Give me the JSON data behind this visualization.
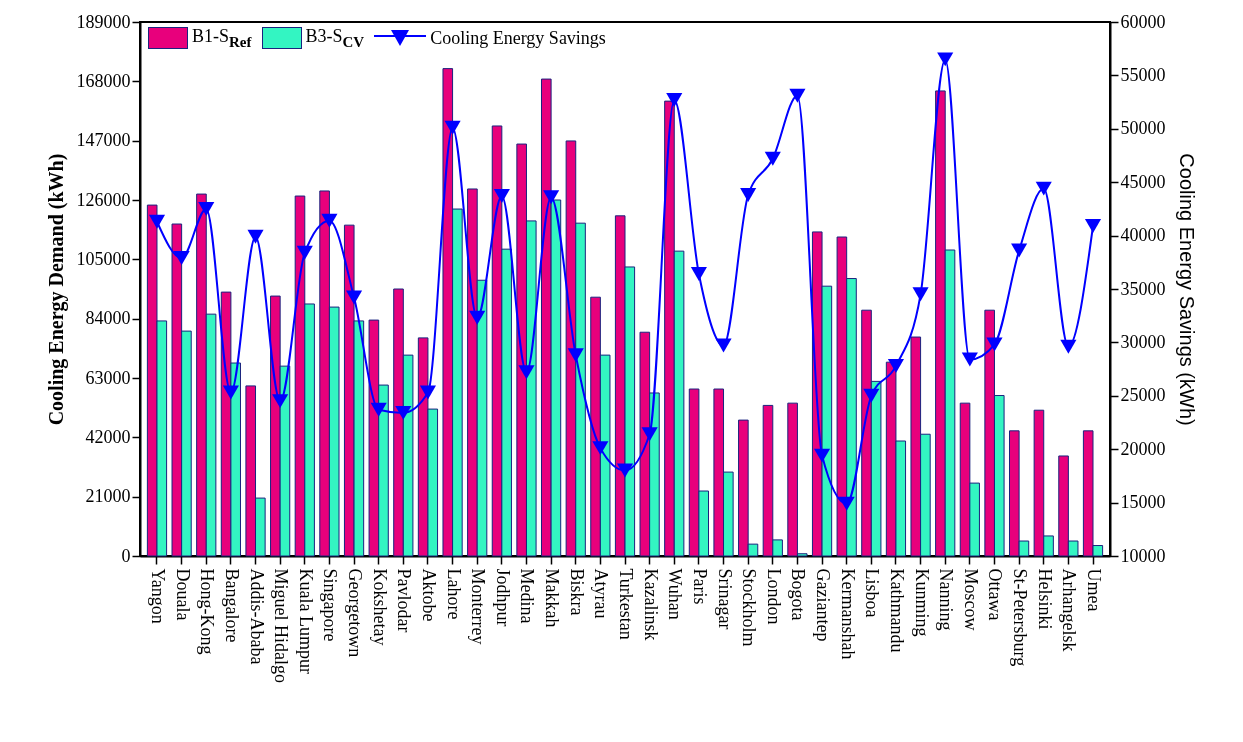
{
  "chart_data": {
    "type": "bar",
    "ylabel": "Cooling Energy Demand (kWh)",
    "y2label": "Cooling Energy Savings (kWh)",
    "categories": [
      "Yangon",
      "Douala",
      "Hong-Kong",
      "Bangalore",
      "Addis-Ababa",
      "Miguel Hidalgo",
      "Kuala Lumpur",
      "Singapore",
      "Georgetown",
      "Kokshetay",
      "Pavlodar",
      "Aktobe",
      "Lahore",
      "Monterrey",
      "Jodhpur",
      "Medina",
      "Makkah",
      "Biskra",
      "Atyrau",
      "Turkestan",
      "Kazalinsk",
      "Wuhan",
      "Paris",
      "Srinagar",
      "Stockholm",
      "London",
      "Bogota",
      "Gaziantep",
      "Kermanshah",
      "Lisboa",
      "Kathmandu",
      "Kunming",
      "Nanning",
      "Moscow",
      "Ottawa",
      "St-Petersburg",
      "Helsinki",
      "Arhangelsk",
      "Umea"
    ],
    "series": [
      {
        "name": "B1-S$_{Ref}$",
        "color": "#e8007c",
        "values": [
          124200,
          117500,
          128100,
          93400,
          60200,
          92000,
          127400,
          129200,
          117100,
          83500,
          94500,
          77200,
          172500,
          129900,
          152200,
          145800,
          168800,
          146900,
          91600,
          120400,
          79200,
          161000,
          59100,
          59100,
          48100,
          53300,
          54100,
          114700,
          112900,
          87000,
          68600,
          77500,
          164600,
          54100,
          87000,
          44300,
          51600,
          35400,
          44300
        ]
      },
      {
        "name": "B3-S$_{CV}$",
        "color": "#33f5c2",
        "values": [
          83200,
          79600,
          85600,
          68300,
          20500,
          67200,
          89200,
          88100,
          83200,
          60500,
          71100,
          52000,
          122800,
          97600,
          108600,
          118600,
          126000,
          117800,
          71100,
          102300,
          57700,
          107900,
          23000,
          29700,
          4200,
          5700,
          800,
          95500,
          98200,
          61800,
          40700,
          43100,
          108300,
          25800,
          56800,
          5300,
          7100,
          5300,
          3700
        ]
      },
      {
        "name": "Cooling Energy Savings",
        "type": "line",
        "axis": "y2",
        "color": "#0000ff",
        "values": [
          41300,
          37900,
          42500,
          25300,
          39900,
          24500,
          38400,
          41400,
          34200,
          23700,
          23400,
          25300,
          50100,
          32300,
          43700,
          27200,
          43600,
          28800,
          20100,
          18000,
          21400,
          52700,
          36400,
          29700,
          43800,
          47200,
          53100,
          19400,
          14900,
          25000,
          27800,
          34500,
          56500,
          28400,
          29800,
          38600,
          44400,
          29600,
          40900
        ]
      }
    ],
    "ylim": [
      0,
      189000
    ],
    "yticks": [
      0,
      21000,
      42000,
      63000,
      84000,
      105000,
      126000,
      147000,
      168000,
      189000
    ],
    "y2lim": [
      10000,
      60000
    ],
    "y2ticks": [
      10000,
      15000,
      20000,
      25000,
      30000,
      35000,
      40000,
      45000,
      50000,
      55000,
      60000
    ],
    "legend": "top left",
    "marker": "triangle",
    "grid": false
  }
}
